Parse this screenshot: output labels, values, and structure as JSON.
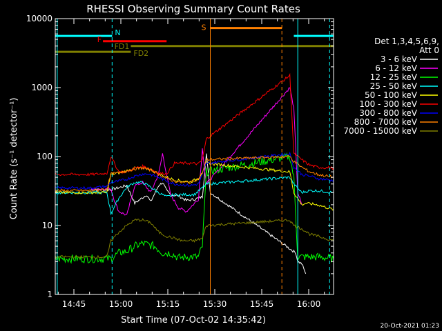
{
  "page": {
    "timestamp": "20-Oct-2021 01:23"
  },
  "chart_data": {
    "type": "line",
    "title": "RHESSI Observing Summary Count Rates",
    "xlabel": "Start Time (07-Oct-02 14:35:42)",
    "ylabel": "Count Rate (s⁻¹ detector⁻¹)",
    "ylog": true,
    "ylim": [
      1,
      10000
    ],
    "xlim_minutes": [
      14.3,
      60
    ],
    "y_ticks": [
      {
        "value": 1,
        "label": "1"
      },
      {
        "value": 10,
        "label": "10"
      },
      {
        "value": 100,
        "label": "100"
      },
      {
        "value": 1000,
        "label": "1000"
      },
      {
        "value": 10000,
        "label": "10000"
      }
    ],
    "x_ticks": [
      {
        "value": 18.3,
        "label": "14:45"
      },
      {
        "value": 33.3,
        "label": "15:00"
      },
      {
        "value": 48.3,
        "label": "15:15"
      },
      {
        "value": 63.3,
        "label": "15:30"
      },
      {
        "value": 78.3,
        "label": "15:45"
      },
      {
        "value": 93.3,
        "label": "16:00"
      },
      {
        "value": 108.3,
        "label": "16:15"
      }
    ],
    "legend": {
      "placement": "right",
      "title_lines": [
        "Det 1,3,4,5,6,9,",
        "Att 0"
      ]
    },
    "series": [
      {
        "name": "3 - 6 keV",
        "color": "#ffffff",
        "points": [
          [
            9,
            33
          ],
          [
            14,
            33
          ],
          [
            18,
            38
          ],
          [
            20,
            21
          ],
          [
            23,
            28
          ],
          [
            24,
            22
          ],
          [
            26,
            38
          ],
          [
            27,
            42
          ],
          [
            28,
            32
          ],
          [
            29,
            28
          ],
          [
            31,
            27
          ],
          [
            33,
            23
          ],
          [
            35,
            24
          ],
          [
            37,
            26
          ],
          [
            38,
            110
          ],
          [
            39,
            30
          ],
          [
            60.5,
            4
          ],
          [
            61,
            3
          ],
          [
            62,
            2.8
          ],
          [
            63,
            2
          ]
        ]
      },
      {
        "name": "6 - 12 keV",
        "color": "#ff00ff",
        "points": [
          [
            9,
            34
          ],
          [
            14,
            34
          ],
          [
            15,
            22
          ],
          [
            16,
            16
          ],
          [
            17,
            15
          ],
          [
            18,
            14
          ],
          [
            20,
            38
          ],
          [
            22,
            42
          ],
          [
            24,
            30
          ],
          [
            26,
            56
          ],
          [
            27,
            110
          ],
          [
            28,
            55
          ],
          [
            29,
            28
          ],
          [
            31,
            18
          ],
          [
            33,
            16
          ],
          [
            36,
            24
          ],
          [
            37,
            130
          ],
          [
            38,
            40
          ],
          [
            59,
            1000
          ],
          [
            60,
            500
          ],
          [
            61,
            30
          ],
          [
            62,
            20
          ]
        ]
      },
      {
        "name": "12 - 25 keV",
        "color": "#00ff00",
        "points": [
          [
            0,
            3.3
          ],
          [
            14,
            3.3
          ],
          [
            16,
            4
          ],
          [
            18,
            4.2
          ],
          [
            20,
            5
          ],
          [
            22,
            5.5
          ],
          [
            25,
            5
          ],
          [
            27,
            4
          ],
          [
            29,
            4
          ],
          [
            31,
            3.4
          ],
          [
            33,
            3.5
          ],
          [
            36,
            3.5
          ],
          [
            37,
            5
          ],
          [
            38,
            60
          ],
          [
            59,
            100
          ],
          [
            60,
            50
          ],
          [
            61,
            3.5
          ],
          [
            66,
            3.5
          ],
          [
            70,
            3.3
          ]
        ]
      },
      {
        "name": "25 - 50 keV",
        "color": "#00ffff",
        "points": [
          [
            0,
            30
          ],
          [
            9,
            30
          ],
          [
            13,
            30
          ],
          [
            14,
            15
          ],
          [
            16,
            25
          ],
          [
            18,
            36
          ],
          [
            20,
            42
          ],
          [
            22,
            42
          ],
          [
            24,
            36
          ],
          [
            26,
            30
          ],
          [
            28,
            26
          ],
          [
            30,
            28
          ],
          [
            32,
            28
          ],
          [
            35,
            28
          ],
          [
            37,
            35
          ],
          [
            38,
            40
          ],
          [
            59,
            50
          ],
          [
            60,
            40
          ],
          [
            62,
            30
          ],
          [
            64,
            32
          ],
          [
            66,
            32
          ],
          [
            70,
            30
          ]
        ]
      },
      {
        "name": "50 - 100 keV",
        "color": "#ffff00",
        "points": [
          [
            0,
            30
          ],
          [
            9,
            30
          ],
          [
            13,
            30
          ],
          [
            14,
            55
          ],
          [
            16,
            58
          ],
          [
            18,
            62
          ],
          [
            20,
            68
          ],
          [
            22,
            68
          ],
          [
            24,
            65
          ],
          [
            26,
            56
          ],
          [
            28,
            50
          ],
          [
            30,
            46
          ],
          [
            32,
            44
          ],
          [
            34,
            43
          ],
          [
            36,
            48
          ],
          [
            37,
            60
          ],
          [
            38,
            80
          ],
          [
            59,
            60
          ],
          [
            60,
            30
          ],
          [
            62,
            20
          ],
          [
            63,
            21
          ],
          [
            66,
            20
          ],
          [
            70,
            17
          ]
        ]
      },
      {
        "name": "100 - 300 keV",
        "color": "#ff0000",
        "points": [
          [
            0,
            55
          ],
          [
            9,
            55
          ],
          [
            13,
            57
          ],
          [
            14,
            100
          ],
          [
            16,
            60
          ],
          [
            18,
            60
          ],
          [
            20,
            68
          ],
          [
            22,
            72
          ],
          [
            24,
            66
          ],
          [
            26,
            57
          ],
          [
            28,
            56
          ],
          [
            30,
            80
          ],
          [
            32,
            80
          ],
          [
            34,
            80
          ],
          [
            36,
            78
          ],
          [
            37,
            90
          ],
          [
            38,
            180
          ],
          [
            59,
            1500
          ],
          [
            60,
            110
          ],
          [
            62,
            90
          ],
          [
            64,
            75
          ],
          [
            66,
            70
          ],
          [
            70,
            68
          ]
        ]
      },
      {
        "name": "300 - 800 keV",
        "color": "#0000ff",
        "points": [
          [
            0,
            35
          ],
          [
            9,
            35
          ],
          [
            13,
            37
          ],
          [
            14,
            42
          ],
          [
            16,
            44
          ],
          [
            18,
            47
          ],
          [
            20,
            52
          ],
          [
            22,
            56
          ],
          [
            24,
            55
          ],
          [
            26,
            50
          ],
          [
            28,
            44
          ],
          [
            30,
            40
          ],
          [
            32,
            39
          ],
          [
            34,
            38
          ],
          [
            36,
            40
          ],
          [
            37,
            55
          ],
          [
            38,
            80
          ],
          [
            59,
            110
          ],
          [
            60,
            70
          ],
          [
            62,
            55
          ],
          [
            64,
            52
          ],
          [
            66,
            48
          ],
          [
            70,
            45
          ]
        ]
      },
      {
        "name": "800 - 7000 keV",
        "color": "#ff8000",
        "points": [
          [
            0,
            32
          ],
          [
            9,
            32
          ],
          [
            13,
            34
          ],
          [
            14,
            56
          ],
          [
            16,
            58
          ],
          [
            18,
            62
          ],
          [
            20,
            66
          ],
          [
            22,
            68
          ],
          [
            24,
            64
          ],
          [
            26,
            56
          ],
          [
            28,
            48
          ],
          [
            30,
            44
          ],
          [
            32,
            42
          ],
          [
            34,
            42
          ],
          [
            36,
            48
          ],
          [
            37,
            58
          ],
          [
            38,
            90
          ],
          [
            59,
            100
          ],
          [
            60,
            85
          ],
          [
            62,
            70
          ],
          [
            64,
            60
          ],
          [
            66,
            55
          ],
          [
            70,
            50
          ]
        ]
      },
      {
        "name": "7000 - 15000 keV",
        "color": "#808000",
        "points": [
          [
            0,
            3.5
          ],
          [
            9,
            3.5
          ],
          [
            13,
            3.5
          ],
          [
            14,
            6
          ],
          [
            16,
            8
          ],
          [
            18,
            10
          ],
          [
            20,
            12
          ],
          [
            22,
            12
          ],
          [
            24,
            11
          ],
          [
            26,
            8
          ],
          [
            28,
            7
          ],
          [
            30,
            6.5
          ],
          [
            32,
            6
          ],
          [
            35,
            6
          ],
          [
            37,
            6.5
          ],
          [
            38,
            10
          ],
          [
            59,
            12
          ],
          [
            60,
            10
          ],
          [
            62,
            9
          ],
          [
            64,
            7.5
          ],
          [
            66,
            7
          ],
          [
            70,
            6
          ]
        ]
      }
    ],
    "mode_bars": [
      {
        "label": "N",
        "color": "#00ffff",
        "y": 5600,
        "segments": [
          [
            0,
            14.3
          ],
          [
            60,
            70
          ]
        ]
      },
      {
        "label": "F",
        "color": "#ff0000",
        "y": 4700,
        "segments": [
          [
            12,
            28
          ]
        ]
      },
      {
        "label": "FD1",
        "color": "#808000",
        "y": 4000,
        "segments": [
          [
            19,
            70
          ]
        ]
      },
      {
        "label": "FD2",
        "color": "#808000",
        "y": 3300,
        "segments": [
          [
            0,
            19
          ]
        ]
      },
      {
        "label": "S",
        "color": "#ff8000",
        "y": 7300,
        "segments": [
          [
            39,
            57
          ]
        ]
      }
    ],
    "vlines": [
      {
        "x": 0.5,
        "color": "#00ffff",
        "style": "solid"
      },
      {
        "x": 14.3,
        "color": "#00ffff",
        "style": "dashed"
      },
      {
        "x": 39,
        "color": "#ff8000",
        "style": "solid"
      },
      {
        "x": 57,
        "color": "#ff8000",
        "style": "dashed"
      },
      {
        "x": 61,
        "color": "#00ffff",
        "style": "solid"
      },
      {
        "x": 69,
        "color": "#00ffff",
        "style": "dashed"
      }
    ]
  }
}
